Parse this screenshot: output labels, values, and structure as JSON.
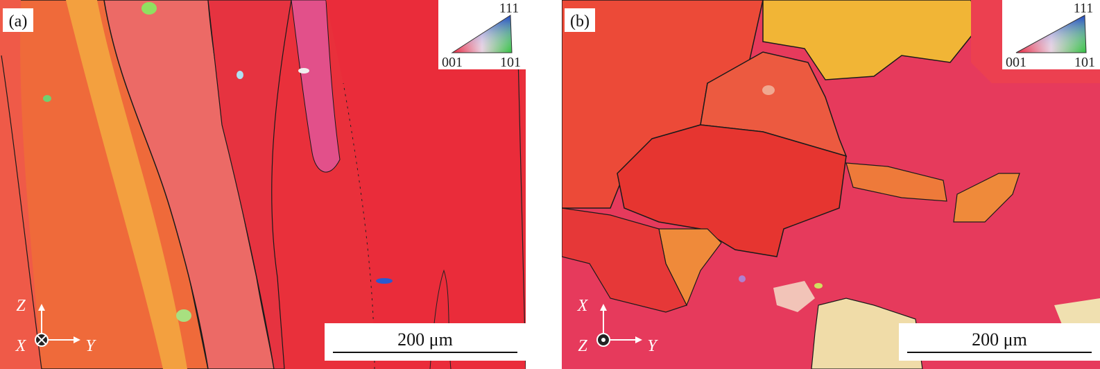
{
  "panels": [
    {
      "label": "(a)",
      "legend": {
        "top": "111",
        "left": "001",
        "right": "101"
      },
      "axes": {
        "up": "Z",
        "normal": "X",
        "right": "Y"
      },
      "scale_bar": "200 μm"
    },
    {
      "label": "(b)",
      "legend": {
        "top": "111",
        "left": "001",
        "right": "101"
      },
      "axes": {
        "up": "X",
        "normal": "Z",
        "right": "Y"
      },
      "scale_bar": "200 μm"
    }
  ]
}
